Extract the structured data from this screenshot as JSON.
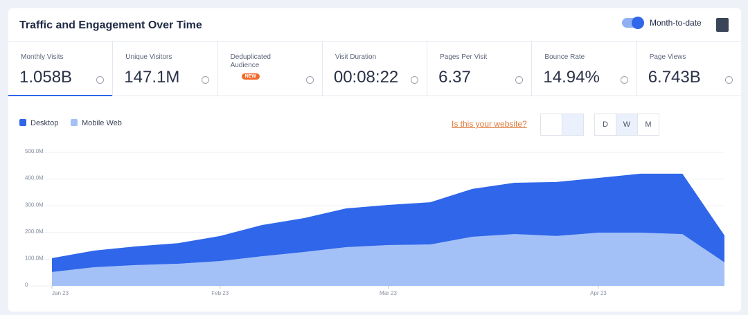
{
  "header": {
    "title": "Traffic and Engagement Over Time",
    "toggle_label": "Month-to-date"
  },
  "metrics": [
    {
      "label": "Monthly Visits",
      "value": "1.058B"
    },
    {
      "label": "Unique Visitors",
      "value": "147.1M"
    },
    {
      "label": "Deduplicated Audience",
      "badge": "NEW"
    },
    {
      "label": "Visit Duration",
      "value": "00:08:22"
    },
    {
      "label": "Pages Per Visit",
      "value": "6.37"
    },
    {
      "label": "Bounce Rate",
      "value": "14.94%"
    },
    {
      "label": "Page Views",
      "value": "6.743B"
    }
  ],
  "toolbar": {
    "link": "Is this your website?",
    "granularity": [
      "D",
      "W",
      "M"
    ]
  },
  "chart_data": {
    "type": "stacked_area",
    "categories": [
      "Jan 23",
      null,
      null,
      null,
      "Feb 23",
      null,
      null,
      null,
      "Mar 23",
      null,
      null,
      null,
      null,
      "Apr 23",
      null,
      null,
      null
    ],
    "series": [
      {
        "name": "Mobile Web",
        "color": "#a3c1f7",
        "values": [
          52000000,
          70000000,
          78000000,
          83000000,
          93000000,
          111000000,
          127000000,
          145000000,
          153000000,
          155000000,
          184000000,
          194000000,
          187000000,
          199000000,
          199000000,
          194000000,
          88000000
        ]
      },
      {
        "name": "Desktop",
        "color": "#2f66ea",
        "values": [
          52000000,
          62000000,
          70000000,
          77000000,
          94000000,
          117000000,
          127000000,
          145000000,
          150000000,
          158000000,
          179000000,
          192000000,
          202000000,
          205000000,
          221000000,
          226000000,
          101000000
        ]
      }
    ],
    "ylim": [
      0,
      500000000
    ],
    "yticks": [
      0,
      {
        "value": 100000000,
        "label": "100.0M"
      },
      {
        "value": 200000000,
        "label": "200.0M"
      },
      {
        "value": 300000000,
        "label": "300.0M"
      },
      {
        "value": 400000000,
        "label": "400.0M"
      },
      {
        "value": 500000000,
        "label": "500.0M"
      }
    ],
    "grid": true
  }
}
